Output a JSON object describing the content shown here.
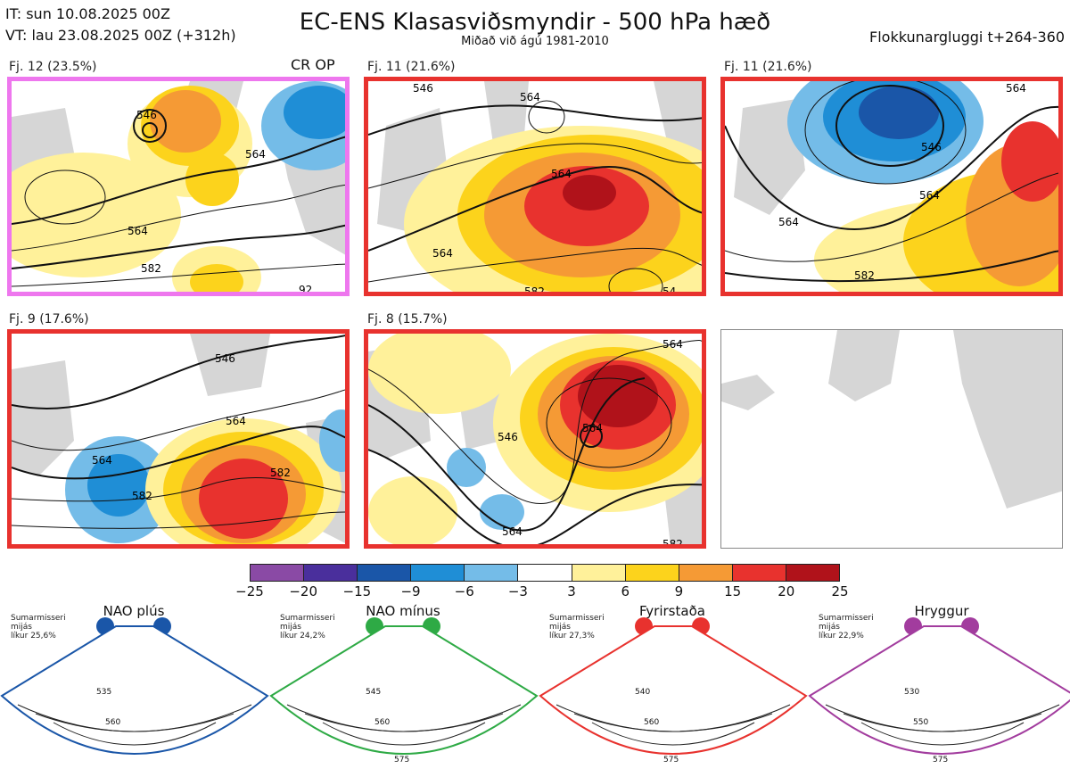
{
  "header": {
    "init_time": "IT: sun 10.08.2025 00Z",
    "valid_time": "VT: lau 23.08.2025 00Z  (+312h)",
    "title": "EC-ENS Klasasviðsmyndir - 500 hPa hæð",
    "subtitle": "Miðað við ágú 1981-2010",
    "window": "Flokkunargluggi t+264-360"
  },
  "clusters": [
    {
      "label": "Fj. 12 (23.5%)",
      "marker": "CR OP",
      "frame_color": "#ee77ee",
      "contours": [
        "546",
        "564",
        "564",
        "582",
        "92"
      ]
    },
    {
      "label": "Fj. 11 (21.6%)",
      "marker": "",
      "frame_color": "#e8322e",
      "contours": [
        "546",
        "564",
        "564",
        "564",
        "582",
        "54"
      ]
    },
    {
      "label": "Fj. 11 (21.6%)",
      "marker": "",
      "frame_color": "#e8322e",
      "contours": [
        "564",
        "546",
        "564",
        "564",
        "582"
      ]
    },
    {
      "label": "Fj. 9 (17.6%)",
      "marker": "",
      "frame_color": "#e8322e",
      "contours": [
        "546",
        "564",
        "564",
        "582",
        "582"
      ]
    },
    {
      "label": "Fj. 8 (15.7%)",
      "marker": "",
      "frame_color": "#e8322e",
      "contours": [
        "564",
        "564",
        "546",
        "564",
        "582"
      ]
    }
  ],
  "colorscale": {
    "ticks": [
      "−25",
      "−20",
      "−15",
      "−9",
      "−6",
      "−3",
      "3",
      "6",
      "9",
      "15",
      "20",
      "25"
    ],
    "colors": [
      "#8a4aa5",
      "#4a2f9c",
      "#1a56a8",
      "#1f8ed6",
      "#74bce8",
      "#ffffff",
      "#fff19a",
      "#fcd31c",
      "#f59a35",
      "#e8322e",
      "#b0121a"
    ]
  },
  "regimes": [
    {
      "name": "NAO plús",
      "season": "Sumarmisseri",
      "model": "mijás",
      "prob": "líkur 25,6%",
      "color": "#1a56a8",
      "labels": [
        "535",
        "560"
      ]
    },
    {
      "name": "NAO mínus",
      "season": "Sumarmisseri",
      "model": "mijás",
      "prob": "líkur 24,2%",
      "color": "#2eaa45",
      "labels": [
        "545",
        "560",
        "575"
      ]
    },
    {
      "name": "Fyrirstaða",
      "season": "Sumarmisseri",
      "model": "mijás",
      "prob": "líkur 27,3%",
      "color": "#e8322e",
      "labels": [
        "540",
        "560",
        "575"
      ]
    },
    {
      "name": "Hryggur",
      "season": "Sumarmisseri",
      "model": "mijás",
      "prob": "líkur 22,9%",
      "color": "#a23c9e",
      "labels": [
        "530",
        "550",
        "575"
      ]
    }
  ]
}
